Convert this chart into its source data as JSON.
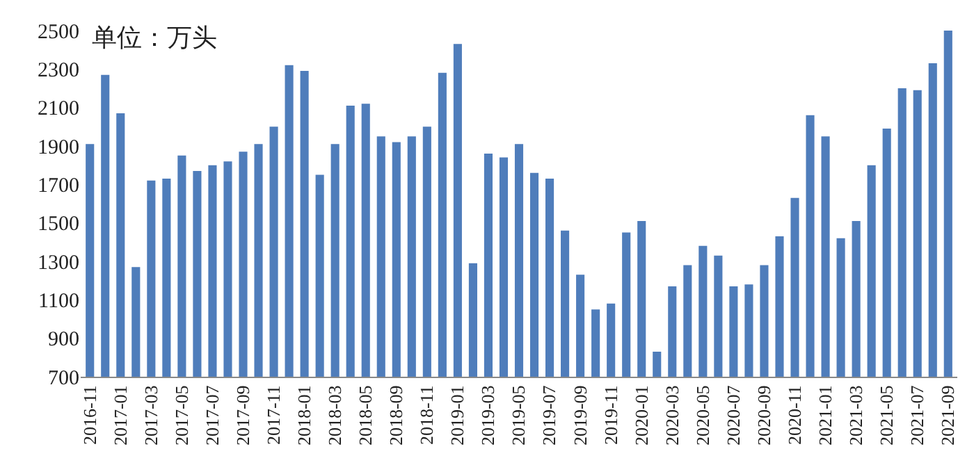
{
  "chart_data": {
    "type": "bar",
    "annotations": [
      "单位：万头"
    ],
    "categories": [
      "2016-11",
      null,
      "2017-01",
      null,
      "2017-03",
      null,
      "2017-05",
      null,
      "2017-07",
      null,
      "2017-09",
      null,
      "2017-11",
      null,
      "2018-01",
      null,
      "2018-03",
      null,
      "2018-05",
      null,
      "2018-09",
      null,
      "2018-11",
      null,
      "2019-01",
      null,
      "2019-03",
      null,
      "2019-05",
      null,
      "2019-07",
      null,
      "2019-09",
      null,
      "2019-11",
      null,
      "2020-01",
      null,
      "2020-03",
      null,
      "2020-05",
      null,
      "2020-07",
      null,
      "2020-09",
      null,
      "2020-11",
      null,
      "2021-01",
      null,
      "2021-03",
      null,
      "2021-05",
      null,
      "2021-07",
      null,
      "2021-09"
    ],
    "values": [
      1910,
      2270,
      2070,
      1270,
      1720,
      1730,
      1850,
      1770,
      1800,
      1820,
      1870,
      1910,
      2000,
      2320,
      2290,
      1750,
      1910,
      2110,
      2120,
      1950,
      1920,
      1950,
      2000,
      2280,
      2430,
      1290,
      1860,
      1840,
      1910,
      1760,
      1730,
      1460,
      1230,
      1050,
      1080,
      1450,
      1510,
      830,
      1170,
      1280,
      1380,
      1330,
      1170,
      1180,
      1280,
      1430,
      1630,
      2060,
      1950,
      1420,
      1510,
      1800,
      1990,
      2200,
      2190,
      2330,
      2500
    ],
    "color": "#4f7dbb",
    "ylim": [
      700,
      2500
    ],
    "yticks": [
      700,
      900,
      1100,
      1300,
      1500,
      1700,
      1900,
      2100,
      2300,
      2500
    ]
  }
}
